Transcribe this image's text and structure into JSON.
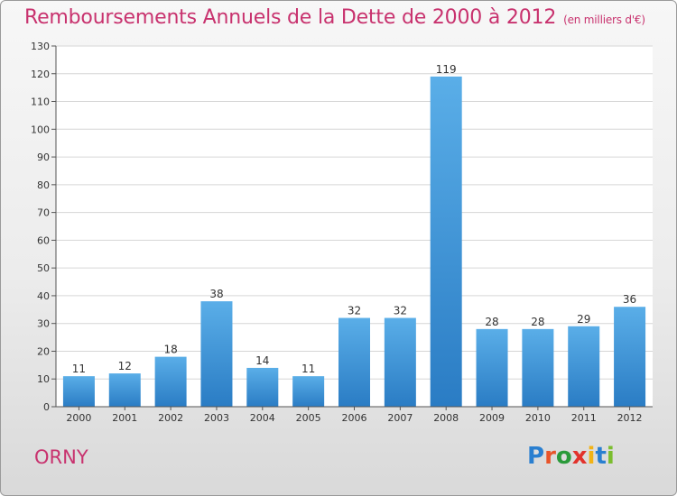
{
  "title": "Remboursements Annuels de la Dette de 2000 à 2012",
  "unit": "(en milliers d'€)",
  "town": "ORNY",
  "logo": {
    "letters": [
      "P",
      "r",
      "o",
      "x",
      "i",
      "t",
      "i"
    ],
    "colors": [
      "#2a7fd0",
      "#e8542a",
      "#2a9a3a",
      "#e2322c",
      "#f2b316",
      "#2a7fd0",
      "#7bbd2f"
    ]
  },
  "chart_data": {
    "type": "bar",
    "categories": [
      "2000",
      "2001",
      "2002",
      "2003",
      "2004",
      "2005",
      "2006",
      "2007",
      "2008",
      "2009",
      "2010",
      "2011",
      "2012"
    ],
    "values": [
      11,
      12,
      18,
      38,
      14,
      11,
      32,
      32,
      119,
      28,
      28,
      29,
      36
    ],
    "ylim": [
      0,
      130
    ],
    "yticks": [
      0,
      10,
      20,
      30,
      40,
      50,
      60,
      70,
      80,
      90,
      100,
      110,
      120,
      130
    ],
    "grid": true,
    "bar_color_top": "#5aaee8",
    "bar_color_bottom": "#2a7cc4"
  }
}
